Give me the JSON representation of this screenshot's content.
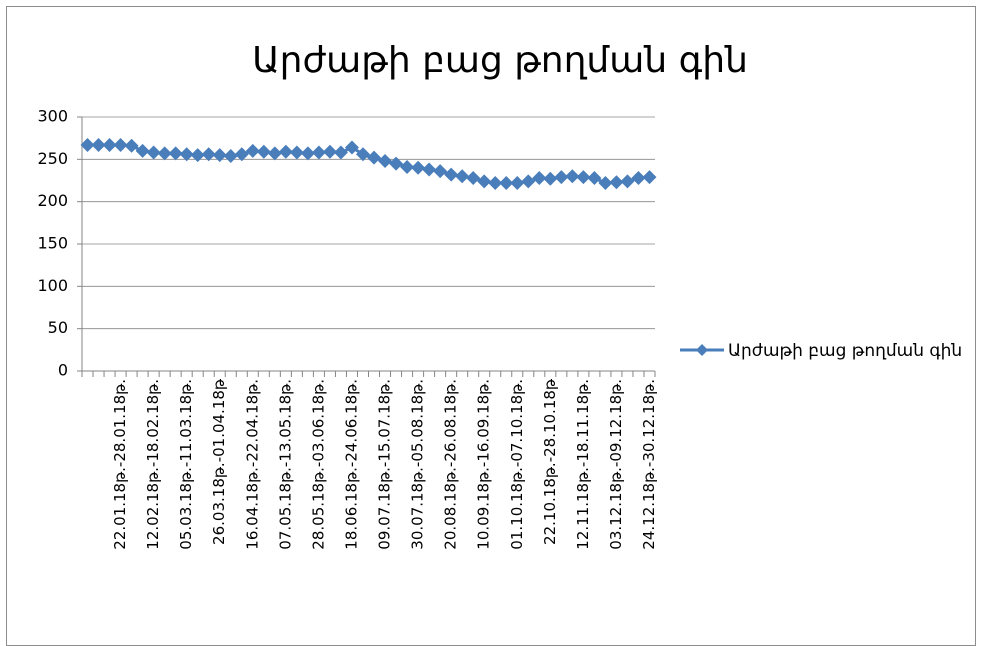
{
  "chart_data": {
    "type": "line",
    "title": "Արժաթի բաց թողման գին",
    "categories": [
      null,
      null,
      null,
      "22.01.18թ.-28.01.18թ.",
      null,
      null,
      "12.02.18թ.-18.02.18թ.",
      null,
      null,
      "05.03.18թ.-11.03.18թ.",
      null,
      null,
      "26.03.18թ.-01.04.18թ",
      null,
      null,
      "16.04.18թ.-22.04.18թ.",
      null,
      null,
      "07.05.18թ.-13.05.18թ.",
      null,
      null,
      "28.05.18թ.-03.06.18թ.",
      null,
      null,
      "18.06.18թ.-24.06.18թ.",
      null,
      null,
      "09.07.18թ.-15.07.18թ.",
      null,
      null,
      "30.07.18թ.-05.08.18թ.",
      null,
      null,
      "20.08.18թ.-26.08.18թ.",
      null,
      null,
      "10.09.18թ.-16.09.18թ.",
      null,
      null,
      "01.10.18թ.-07.10.18թ.",
      null,
      null,
      "22.10.18թ.-28.10.18թ",
      null,
      null,
      "12.11.18թ.-18.11.18թ.",
      null,
      null,
      "03.12.18թ.-09.12.18թ.",
      null,
      null,
      "24.12.18թ.-30.12.18թ."
    ],
    "series": [
      {
        "name": "Արժաթի բաց թողման գին",
        "color": "#4a7ebb",
        "values": [
          267,
          267,
          267,
          267,
          266,
          260,
          258,
          257,
          257,
          256,
          255,
          256,
          255,
          254,
          256,
          260,
          259,
          257,
          259,
          258,
          257,
          258,
          259,
          258,
          264,
          256,
          252,
          248,
          245,
          241,
          240,
          238,
          236,
          232,
          230,
          228,
          224,
          222,
          222,
          222,
          224,
          228,
          227,
          229,
          230,
          229,
          228,
          222,
          223,
          224,
          228,
          229
        ]
      }
    ],
    "ylim": [
      0,
      300
    ],
    "yticks": [
      0,
      50,
      100,
      150,
      200,
      250,
      300
    ],
    "grid": true,
    "legend": "right"
  }
}
